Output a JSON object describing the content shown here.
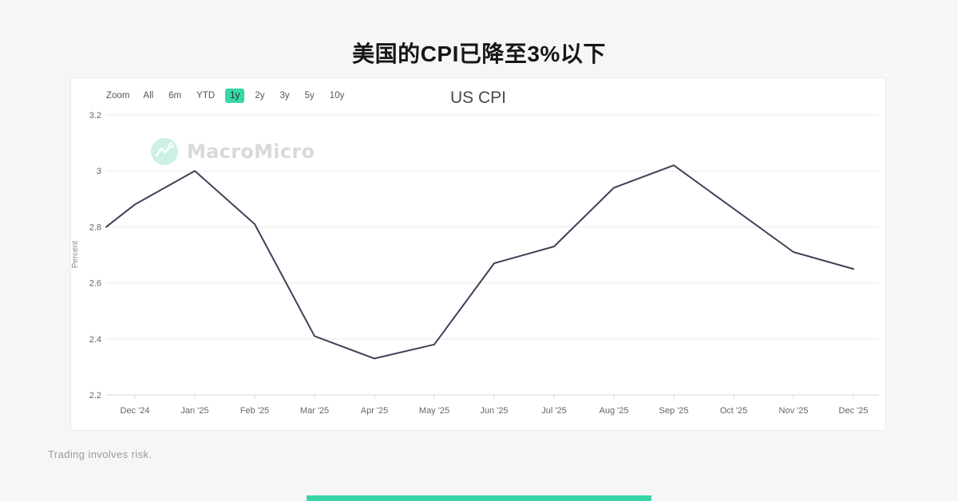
{
  "page": {
    "title": "美国的CPI已降至3%以下",
    "disclaimer": "Trading involves risk."
  },
  "colors": {
    "accent": "#38d6a6",
    "line": "#3e4157",
    "grid": "#e9e9e9",
    "axis": "#d4d4d4",
    "tick_label": "#666666",
    "watermark_logo": "#cdf0e5"
  },
  "toolbar": {
    "zoom_label": "Zoom",
    "ranges": [
      {
        "label": "All",
        "selected": false
      },
      {
        "label": "6m",
        "selected": false
      },
      {
        "label": "YTD",
        "selected": false
      },
      {
        "label": "1y",
        "selected": true
      },
      {
        "label": "2y",
        "selected": false
      },
      {
        "label": "3y",
        "selected": false
      },
      {
        "label": "5y",
        "selected": false
      },
      {
        "label": "10y",
        "selected": false
      }
    ]
  },
  "watermark": {
    "brand": "MacroMicro"
  },
  "chart_data": {
    "type": "line",
    "title": "US CPI",
    "xlabel": "",
    "ylabel": "Percent",
    "ylim": [
      2.2,
      3.2
    ],
    "yticks": [
      "3.2",
      "3",
      "2.8",
      "2.6",
      "2.4",
      "2.2"
    ],
    "ytick_values": [
      3.2,
      3.0,
      2.8,
      2.6,
      2.4,
      2.2
    ],
    "grid": true,
    "legend": "none",
    "categories": [
      "Dec '24",
      "Jan '25",
      "Feb '25",
      "Mar '25",
      "Apr '25",
      "May '25",
      "Jun '25",
      "Jul '25",
      "Aug '25",
      "Sep '25",
      "Oct '25",
      "Nov '25",
      "Dec '25"
    ],
    "edge_start_value": 2.8,
    "series": [
      {
        "name": "US CPI",
        "values": [
          2.88,
          3.0,
          2.81,
          2.41,
          2.33,
          2.38,
          2.67,
          2.73,
          2.94,
          3.02,
          null,
          2.71,
          2.65
        ]
      }
    ]
  }
}
